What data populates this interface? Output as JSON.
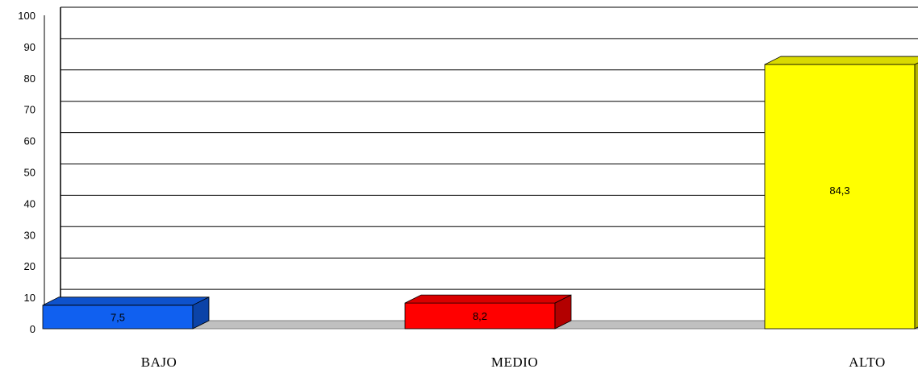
{
  "chart_data": {
    "type": "bar",
    "categories": [
      "BAJO",
      "MEDIO",
      "ALTO"
    ],
    "values": [
      7.5,
      8.2,
      84.3
    ],
    "value_labels": [
      "7,5",
      "8,2",
      "84,3"
    ],
    "colors": [
      "#1060f0",
      "#ff0000",
      "#ffff00"
    ],
    "yticks": [
      "0",
      "10",
      "20",
      "30",
      "40",
      "50",
      "60",
      "70",
      "80",
      "90",
      "100"
    ],
    "ylim": [
      0,
      100
    ],
    "grid": true,
    "style": "3d-bar"
  }
}
